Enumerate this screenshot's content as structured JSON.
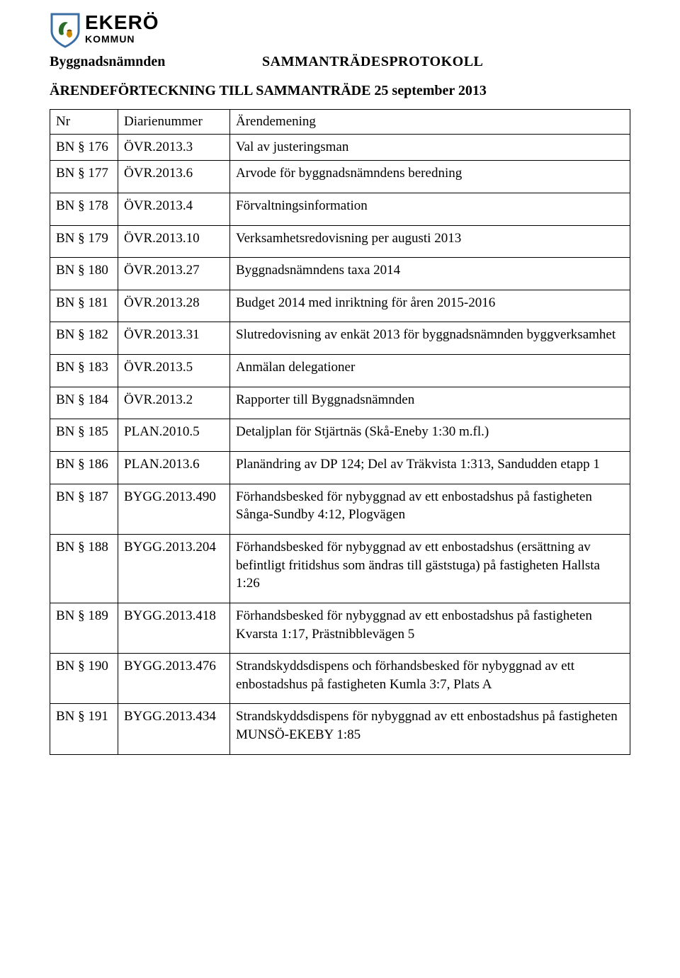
{
  "logo": {
    "name_top": "EKERÖ",
    "name_bottom": "KOMMUN",
    "shield_colors": {
      "outline": "#3a6ea5",
      "fill": "#ffffff",
      "leaf": "#2b6e2b",
      "acorn": "#d08a00"
    }
  },
  "header": {
    "committee": "Byggnadsnämnden",
    "document_title": "SAMMANTRÄDESPROTOKOLL",
    "listing_title": "ÄRENDEFÖRTECKNING TILL SAMMANTRÄDE 25 september 2013"
  },
  "table": {
    "columns": [
      "Nr",
      "Diarienummer",
      "Ärendemening"
    ],
    "rows": [
      {
        "nr": "BN § 176",
        "dnr": "ÖVR.2013.3",
        "title": "Val av justeringsman"
      },
      {
        "nr": "BN § 177",
        "dnr": "ÖVR.2013.6",
        "title": "Arvode för byggnadsnämndens beredning"
      },
      {
        "nr": "BN § 178",
        "dnr": "ÖVR.2013.4",
        "title": "Förvaltningsinformation"
      },
      {
        "nr": "BN § 179",
        "dnr": "ÖVR.2013.10",
        "title": "Verksamhetsredovisning per augusti 2013"
      },
      {
        "nr": "BN § 180",
        "dnr": "ÖVR.2013.27",
        "title": "Byggnadsnämndens taxa 2014"
      },
      {
        "nr": "BN § 181",
        "dnr": "ÖVR.2013.28",
        "title": "Budget 2014 med inriktning för åren 2015-2016"
      },
      {
        "nr": "BN § 182",
        "dnr": "ÖVR.2013.31",
        "title": "Slutredovisning av enkät 2013 för byggnadsnämnden byggverksamhet"
      },
      {
        "nr": "BN § 183",
        "dnr": "ÖVR.2013.5",
        "title": "Anmälan delegationer"
      },
      {
        "nr": "BN § 184",
        "dnr": "ÖVR.2013.2",
        "title": "Rapporter till Byggnadsnämnden"
      },
      {
        "nr": "BN § 185",
        "dnr": "PLAN.2010.5",
        "title": "Detaljplan för Stjärtnäs (Skå-Eneby 1:30 m.fl.)"
      },
      {
        "nr": "BN § 186",
        "dnr": "PLAN.2013.6",
        "title": "Planändring av DP 124; Del av Träkvista 1:313, Sandudden etapp 1"
      },
      {
        "nr": "BN § 187",
        "dnr": "BYGG.2013.490",
        "title": "Förhandsbesked för nybyggnad av ett enbostadshus på fastigheten Sånga-Sundby 4:12, Plogvägen"
      },
      {
        "nr": "BN § 188",
        "dnr": "BYGG.2013.204",
        "title": "Förhandsbesked för nybyggnad av ett enbostadshus (ersättning av befintligt fritidshus som ändras till gäststuga) på fastigheten Hallsta 1:26"
      },
      {
        "nr": "BN § 189",
        "dnr": "BYGG.2013.418",
        "title": "Förhandsbesked för nybyggnad av ett enbostadshus på fastigheten Kvarsta 1:17, Prästnibblevägen 5"
      },
      {
        "nr": "BN § 190",
        "dnr": "BYGG.2013.476",
        "title": "Strandskyddsdispens och förhandsbesked för nybyggnad av ett enbostadshus på fastigheten Kumla 3:7, Plats A"
      },
      {
        "nr": "BN § 191",
        "dnr": "BYGG.2013.434",
        "title": "Strandskyddsdispens för nybyggnad av ett enbostadshus på fastigheten MUNSÖ-EKEBY 1:85"
      }
    ]
  },
  "style": {
    "page_bg": "#ffffff",
    "text_color": "#000000",
    "border_color": "#000000",
    "body_font": "Georgia",
    "logo_font": "Arial",
    "title_fontsize_pt": 15,
    "cell_fontsize_pt": 14
  }
}
